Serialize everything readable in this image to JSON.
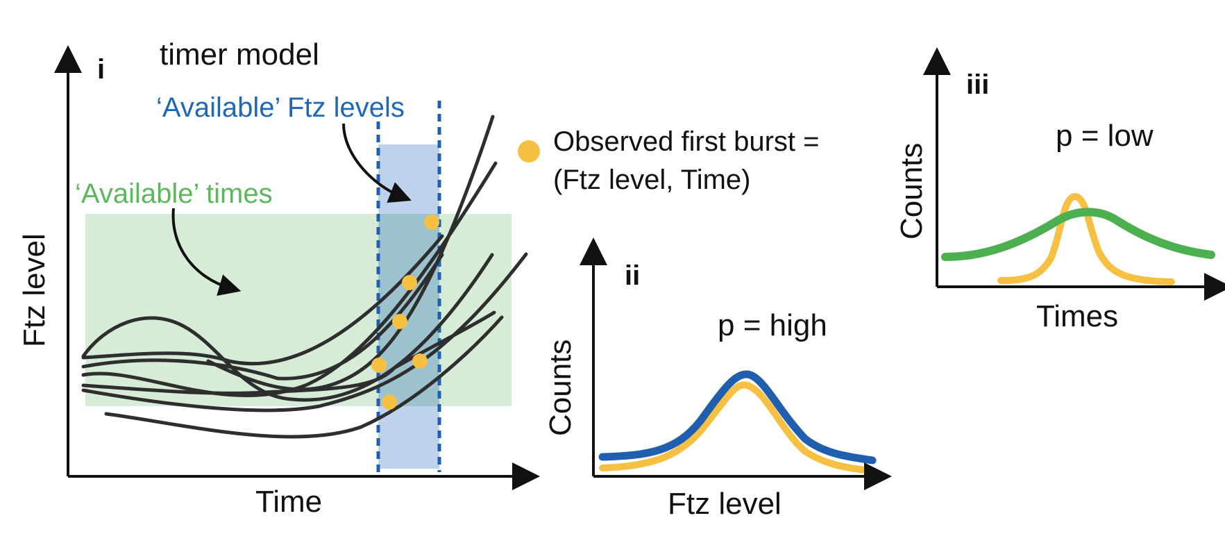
{
  "panel_i": {
    "letter": "i",
    "title": "timer model",
    "available_ftz_label": "‘Available’ Ftz levels",
    "available_times_label": "‘Available’ times",
    "x_label": "Time",
    "y_label": "Ftz level"
  },
  "legend": {
    "line1": "Observed first burst =",
    "line2": "(Ftz level, Time)"
  },
  "panel_ii": {
    "letter": "ii",
    "annotation": "p = high",
    "x_label": "Ftz level",
    "y_label": "Counts"
  },
  "panel_iii": {
    "letter": "iii",
    "annotation": "p = low",
    "x_label": "Times",
    "y_label": "Counts"
  },
  "colors": {
    "blue": "#1f5fad",
    "blue_band": "#a9c3e6",
    "green": "#4caf50",
    "green_band": "#cfe9cf",
    "yellow": "#f6c142",
    "curve": "#2e2e2e",
    "text_blue": "#2067b4",
    "text_green": "#5cb85c"
  }
}
